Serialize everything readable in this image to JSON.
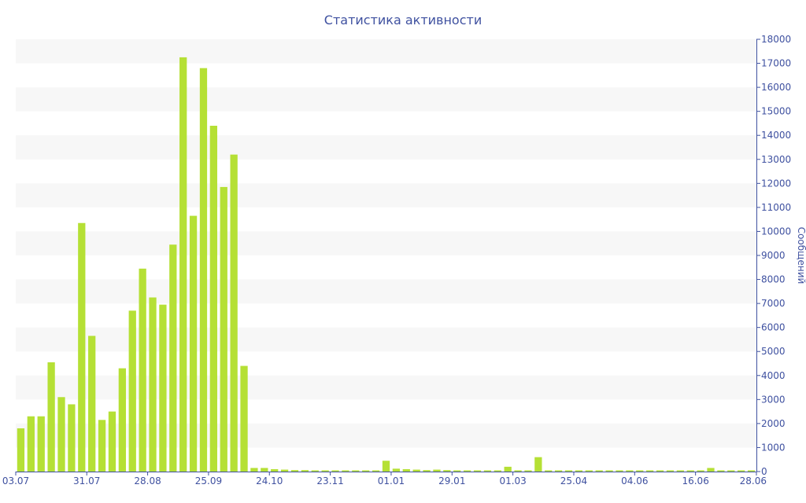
{
  "chart_data": {
    "type": "bar",
    "title": "Статистика активности",
    "ylabel": "Сообщений",
    "xlabel": "",
    "ylim": [
      0,
      18000
    ],
    "y_ticks": [
      0,
      1000,
      2000,
      3000,
      4000,
      5000,
      6000,
      7000,
      8000,
      9000,
      10000,
      11000,
      12000,
      13000,
      14000,
      15000,
      16000,
      17000,
      18000
    ],
    "x_tick_labels": [
      {
        "label": "03.07",
        "index": 0
      },
      {
        "label": "31.07",
        "index": 6.5
      },
      {
        "label": "28.08",
        "index": 12.5
      },
      {
        "label": "25.09",
        "index": 18.5
      },
      {
        "label": "24.10",
        "index": 24.5
      },
      {
        "label": "23.11",
        "index": 30.5
      },
      {
        "label": "01.01",
        "index": 36.5
      },
      {
        "label": "29.01",
        "index": 42.5
      },
      {
        "label": "01.03",
        "index": 48.5
      },
      {
        "label": "25.04",
        "index": 54.5
      },
      {
        "label": "04.06",
        "index": 60.5
      },
      {
        "label": "16.06",
        "index": 66.5
      },
      {
        "label": "28.06",
        "index": 72.5
      }
    ],
    "values": [
      1800,
      2300,
      2300,
      4550,
      3100,
      2800,
      10350,
      5650,
      2150,
      2500,
      4300,
      6700,
      8450,
      7250,
      6950,
      9450,
      17250,
      10650,
      16800,
      14400,
      11850,
      13200,
      4400,
      150,
      150,
      100,
      80,
      60,
      60,
      50,
      50,
      50,
      50,
      50,
      50,
      50,
      450,
      120,
      100,
      80,
      60,
      80,
      60,
      50,
      50,
      50,
      50,
      50,
      200,
      50,
      50,
      600,
      50,
      50,
      50,
      50,
      50,
      50,
      50,
      50,
      50,
      50,
      50,
      50,
      50,
      50,
      50,
      50,
      150,
      50,
      50,
      50,
      50
    ],
    "colors": {
      "bar": "#b5e035",
      "band_alt": "#f7f7f7",
      "text": "#3f51a0",
      "axis": "#3f51a0"
    }
  }
}
